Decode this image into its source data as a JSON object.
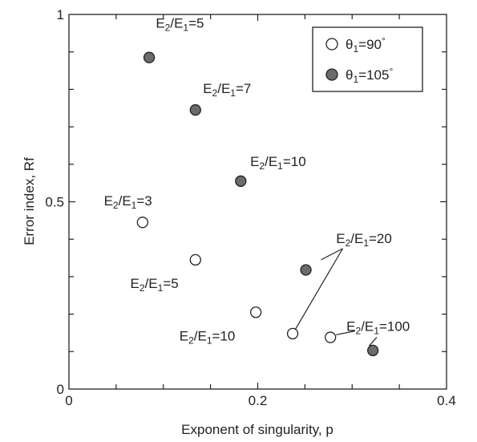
{
  "chart_data": {
    "type": "scatter",
    "title": "",
    "xlabel": "Exponent of singularity, p",
    "ylabel": "Error index, Rf",
    "xlim": [
      0,
      0.4
    ],
    "ylim": [
      0,
      1
    ],
    "xticks": [
      0,
      0.2,
      0.4
    ],
    "xtick_labels": [
      "0",
      "0.2",
      "0.4"
    ],
    "yticks": [
      0,
      0.5,
      1
    ],
    "ytick_labels": [
      "0",
      "0.5",
      "1"
    ],
    "grid": false,
    "legend_position": "top-right",
    "series": [
      {
        "name": "θ1=90°",
        "legend_label": "θ",
        "legend_sub": "1",
        "legend_suffix": "=90",
        "marker": "open-circle",
        "color": "#222222",
        "fill": "#ffffff",
        "points": [
          {
            "x": 0.078,
            "y": 0.445,
            "label": "E2/E1=3"
          },
          {
            "x": 0.134,
            "y": 0.345,
            "label": "E2/E1=5"
          },
          {
            "x": 0.198,
            "y": 0.205,
            "label": "E2/E1=10"
          },
          {
            "x": 0.237,
            "y": 0.148,
            "label": "E2/E1=20"
          },
          {
            "x": 0.277,
            "y": 0.138,
            "label": "E2/E1=100"
          }
        ]
      },
      {
        "name": "θ1=105°",
        "legend_label": "θ",
        "legend_sub": "1",
        "legend_suffix": "=105",
        "marker": "filled-circle",
        "color": "#222222",
        "fill": "#6b6b6b",
        "points": [
          {
            "x": 0.085,
            "y": 0.885,
            "label": "E2/E1=5"
          },
          {
            "x": 0.134,
            "y": 0.745,
            "label": "E2/E1=7"
          },
          {
            "x": 0.182,
            "y": 0.555,
            "label": "E2/E1=10"
          },
          {
            "x": 0.251,
            "y": 0.318,
            "label": "E2/E1=20"
          },
          {
            "x": 0.322,
            "y": 0.103,
            "label": "E2/E1=100"
          }
        ]
      }
    ],
    "annotations": [
      {
        "id": "ann-105-5",
        "base": "E",
        "sub1": "2",
        "mid": "/E",
        "sub2": "1",
        "suffix": "=5",
        "x": 0.092,
        "y": 0.965
      },
      {
        "id": "ann-105-7",
        "base": "E",
        "sub1": "2",
        "mid": "/E",
        "sub2": "1",
        "suffix": "=7",
        "x": 0.142,
        "y": 0.79
      },
      {
        "id": "ann-105-10",
        "base": "E",
        "sub1": "2",
        "mid": "/E",
        "sub2": "1",
        "suffix": "=10",
        "x": 0.192,
        "y": 0.595
      },
      {
        "id": "ann-90-3",
        "base": "E",
        "sub1": "2",
        "mid": "/E",
        "sub2": "1",
        "suffix": "=3",
        "x": 0.037,
        "y": 0.49
      },
      {
        "id": "ann-90-5",
        "base": "E",
        "sub1": "2",
        "mid": "/E",
        "sub2": "1",
        "suffix": "=5",
        "x": 0.065,
        "y": 0.27
      },
      {
        "id": "ann-90-10",
        "base": "E",
        "sub1": "2",
        "mid": "/E",
        "sub2": "1",
        "suffix": "=10",
        "x": 0.117,
        "y": 0.13
      },
      {
        "id": "ann-20",
        "base": "E",
        "sub1": "2",
        "mid": "/E",
        "sub2": "1",
        "suffix": "=20",
        "x": 0.283,
        "y": 0.39
      },
      {
        "id": "ann-100",
        "base": "E",
        "sub1": "2",
        "mid": "/E",
        "sub2": "1",
        "suffix": "=100",
        "x": 0.294,
        "y": 0.155
      }
    ],
    "leader_lines": [
      {
        "from": [
          0.267,
          0.345
        ],
        "to": [
          0.29,
          0.375
        ]
      },
      {
        "from": [
          0.24,
          0.16
        ],
        "to": [
          0.29,
          0.375
        ]
      },
      {
        "from": [
          0.283,
          0.145
        ],
        "to": [
          0.303,
          0.155
        ]
      },
      {
        "from": [
          0.318,
          0.115
        ],
        "to": [
          0.326,
          0.138
        ]
      }
    ]
  }
}
